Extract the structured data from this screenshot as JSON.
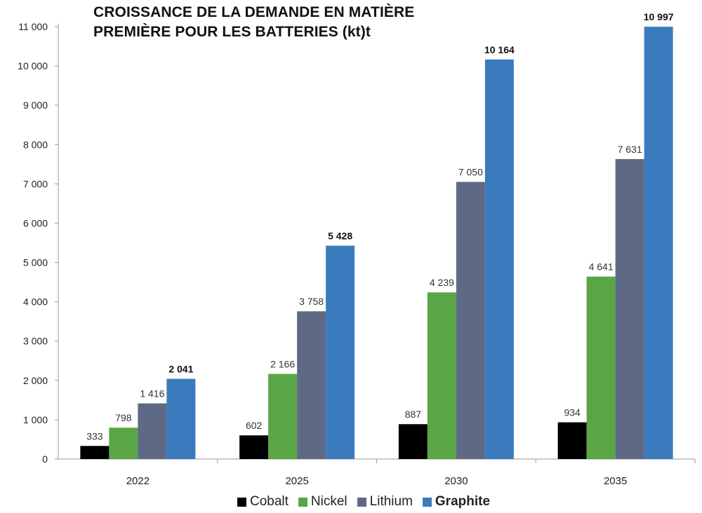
{
  "title_lines": [
    "CROISSANCE DE LA DEMANDE EN MATIÈRE",
    "PREMIÈRE POUR LES BATTERIES (kt)t"
  ],
  "chart_data": {
    "type": "bar",
    "title": "CROISSANCE DE LA DEMANDE EN MATIÈRE PREMIÈRE POUR LES BATTERIES (kt)t",
    "categories": [
      "2022",
      "2025",
      "2030",
      "2035"
    ],
    "series": [
      {
        "name": "Cobalt",
        "color": "#000000",
        "values": [
          333,
          602,
          887,
          934
        ],
        "labels": [
          "333",
          "602",
          "887",
          "934"
        ]
      },
      {
        "name": "Nickel",
        "color": "#5aa545",
        "values": [
          798,
          2166,
          4239,
          4641
        ],
        "labels": [
          "798",
          "2 166",
          "4 239",
          "4 641"
        ]
      },
      {
        "name": "Lithium",
        "color": "#5e6a85",
        "values": [
          1416,
          3758,
          7050,
          7631
        ],
        "labels": [
          "1 416",
          "3 758",
          "7 050",
          "7 631"
        ]
      },
      {
        "name": "Graphite",
        "color": "#3a7bbd",
        "values": [
          2041,
          5428,
          10164,
          10997
        ],
        "labels": [
          "2 041",
          "5 428",
          "10 164",
          "10 997"
        ],
        "bold": true
      }
    ],
    "ylim": [
      0,
      11000
    ],
    "yticks": [
      0,
      1000,
      2000,
      3000,
      4000,
      5000,
      6000,
      7000,
      8000,
      9000,
      10000,
      11000
    ],
    "ytick_labels": [
      "0",
      "1 000",
      "2 000",
      "3 000",
      "4 000",
      "5 000",
      "6 000",
      "7 000",
      "8 000",
      "9 000",
      "10 000",
      "11 000"
    ],
    "grid": false,
    "legend": "bottom"
  }
}
